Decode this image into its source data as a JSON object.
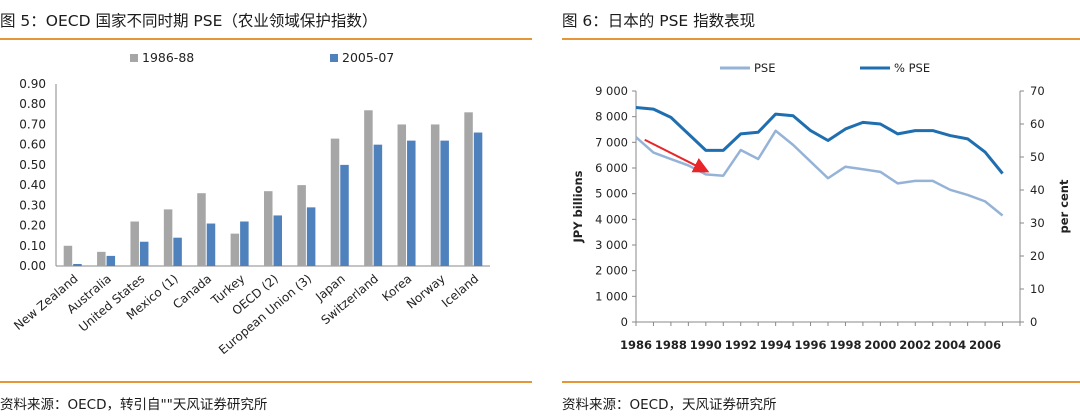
{
  "left": {
    "title": "图 5：OECD 国家不同时期 PSE（农业领域保护指数）",
    "source": "资料来源：OECD，转引自\"\"天风证券研究所",
    "chart_data": {
      "type": "bar",
      "categories": [
        "New Zealand",
        "Australia",
        "United States",
        "Mexico (1)",
        "Canada",
        "Turkey",
        "OECD (2)",
        "European Union (3)",
        "Japan",
        "Switzerland",
        "Korea",
        "Norway",
        "Iceland"
      ],
      "series": [
        {
          "name": "1986-88",
          "color": "#a6a6a6",
          "values": [
            0.1,
            0.07,
            0.22,
            0.28,
            0.36,
            0.16,
            0.37,
            0.4,
            0.63,
            0.77,
            0.7,
            0.7,
            0.76
          ]
        },
        {
          "name": "2005-07",
          "color": "#4f81bd",
          "values": [
            0.01,
            0.05,
            0.12,
            0.14,
            0.21,
            0.22,
            0.25,
            0.29,
            0.5,
            0.6,
            0.62,
            0.62,
            0.66
          ]
        }
      ],
      "ylim": [
        0,
        0.9
      ],
      "yticks": [
        "0.00",
        "0.10",
        "0.20",
        "0.30",
        "0.40",
        "0.50",
        "0.60",
        "0.70",
        "0.80",
        "0.90"
      ],
      "grid": false,
      "legend": "top"
    }
  },
  "right": {
    "title": "图 6：日本的 PSE 指数表现",
    "source": "资料来源：OECD，天风证券研究所",
    "chart_data": {
      "type": "line",
      "x": [
        1986,
        1987,
        1988,
        1989,
        1990,
        1991,
        1992,
        1993,
        1994,
        1995,
        1996,
        1997,
        1998,
        1999,
        2000,
        2001,
        2002,
        2003,
        2004,
        2005,
        2006,
        2007
      ],
      "series": [
        {
          "name": "PSE",
          "axis": "left",
          "color": "#95b3d7",
          "values": [
            7200,
            6600,
            6350,
            6100,
            5750,
            5700,
            6700,
            6350,
            7450,
            6900,
            6250,
            5600,
            6050,
            5950,
            5850,
            5400,
            5500,
            5500,
            5150,
            4950,
            4700,
            4150
          ]
        },
        {
          "name": "% PSE",
          "axis": "right",
          "color": "#1f6fb0",
          "values": [
            65,
            64.5,
            62,
            57,
            52,
            52,
            57,
            57.5,
            63,
            62.5,
            58,
            55,
            58.5,
            60.5,
            60,
            57,
            58,
            58,
            56.5,
            55.5,
            51.5,
            45
          ]
        }
      ],
      "xticks": [
        "1986",
        "1988",
        "1990",
        "1992",
        "1994",
        "1996",
        "1998",
        "2000",
        "2002",
        "2004",
        "2006"
      ],
      "ylim_left": [
        0,
        9000
      ],
      "yticks_left": [
        "0",
        "1 000",
        "2 000",
        "3 000",
        "4 000",
        "5 000",
        "6 000",
        "7 000",
        "8 000",
        "9 000"
      ],
      "ylim_right": [
        0,
        70
      ],
      "yticks_right": [
        "0",
        "10",
        "20",
        "30",
        "40",
        "50",
        "60",
        "70"
      ],
      "ylabel_left": "JPY billions",
      "ylabel_right": "per cent",
      "arrow_color": "#e8262a",
      "grid": false,
      "legend": "top"
    }
  }
}
